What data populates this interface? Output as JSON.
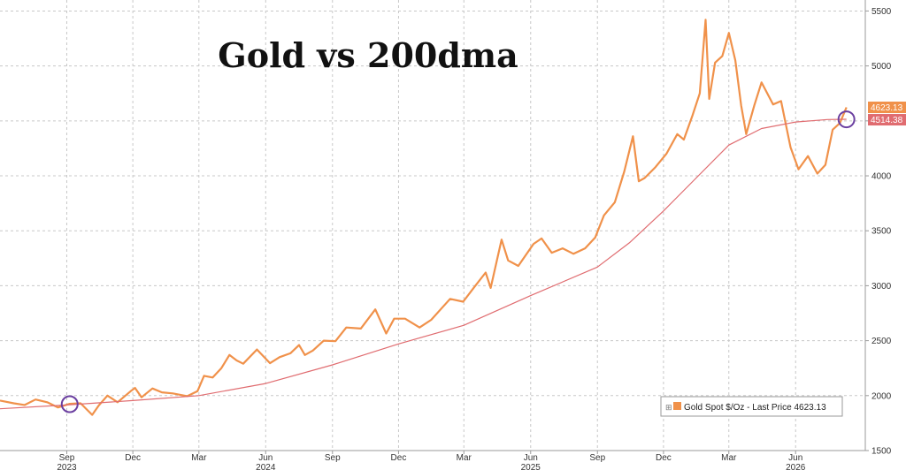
{
  "chart_data": {
    "type": "line",
    "title": "Gold vs 200dma",
    "xlabel": "",
    "ylabel": "",
    "ylim": [
      1500,
      5600
    ],
    "y_ticks": [
      1500,
      2000,
      2500,
      3000,
      3500,
      4000,
      4500,
      5000,
      5500
    ],
    "y_axis_side": "right",
    "x_range": [
      "2023-06-01",
      "2026-09-05"
    ],
    "x_ticks": [
      {
        "date": "2023-09-01",
        "label": "Sep",
        "year": "2023"
      },
      {
        "date": "2023-12-01",
        "label": "Dec",
        "year": ""
      },
      {
        "date": "2024-03-01",
        "label": "Mar",
        "year": ""
      },
      {
        "date": "2024-06-01",
        "label": "Jun",
        "year": "2024"
      },
      {
        "date": "2024-09-01",
        "label": "Sep",
        "year": ""
      },
      {
        "date": "2024-12-01",
        "label": "Dec",
        "year": ""
      },
      {
        "date": "2025-03-01",
        "label": "Mar",
        "year": ""
      },
      {
        "date": "2025-06-01",
        "label": "Jun",
        "year": "2025"
      },
      {
        "date": "2025-09-01",
        "label": "Sep",
        "year": ""
      },
      {
        "date": "2025-12-01",
        "label": "Dec",
        "year": ""
      },
      {
        "date": "2026-03-01",
        "label": "Mar",
        "year": ""
      },
      {
        "date": "2026-06-01",
        "label": "Jun",
        "year": "2026"
      }
    ],
    "grid": true,
    "legend": {
      "placement": "bottom-right",
      "label": "Gold Spot $/Oz - Last Price 4623.13"
    },
    "series": [
      {
        "key": "gold_spot",
        "color": "#f0914a",
        "points": [
          [
            "2023-06-01",
            1955
          ],
          [
            "2023-06-20",
            1930
          ],
          [
            "2023-07-05",
            1915
          ],
          [
            "2023-07-20",
            1965
          ],
          [
            "2023-08-05",
            1940
          ],
          [
            "2023-08-20",
            1892
          ],
          [
            "2023-09-05",
            1925
          ],
          [
            "2023-09-20",
            1930
          ],
          [
            "2023-10-06",
            1825
          ],
          [
            "2023-10-15",
            1910
          ],
          [
            "2023-10-27",
            2000
          ],
          [
            "2023-11-10",
            1940
          ],
          [
            "2023-11-28",
            2040
          ],
          [
            "2023-12-04",
            2070
          ],
          [
            "2023-12-13",
            1985
          ],
          [
            "2023-12-28",
            2065
          ],
          [
            "2024-01-10",
            2030
          ],
          [
            "2024-01-25",
            2020
          ],
          [
            "2024-02-14",
            1995
          ],
          [
            "2024-02-28",
            2040
          ],
          [
            "2024-03-08",
            2180
          ],
          [
            "2024-03-20",
            2165
          ],
          [
            "2024-04-01",
            2250
          ],
          [
            "2024-04-12",
            2370
          ],
          [
            "2024-04-22",
            2320
          ],
          [
            "2024-05-01",
            2290
          ],
          [
            "2024-05-20",
            2420
          ],
          [
            "2024-06-07",
            2295
          ],
          [
            "2024-06-20",
            2350
          ],
          [
            "2024-07-05",
            2385
          ],
          [
            "2024-07-17",
            2460
          ],
          [
            "2024-07-25",
            2370
          ],
          [
            "2024-08-05",
            2410
          ],
          [
            "2024-08-20",
            2500
          ],
          [
            "2024-09-05",
            2495
          ],
          [
            "2024-09-20",
            2620
          ],
          [
            "2024-10-10",
            2610
          ],
          [
            "2024-10-30",
            2785
          ],
          [
            "2024-11-14",
            2565
          ],
          [
            "2024-11-25",
            2700
          ],
          [
            "2024-12-10",
            2700
          ],
          [
            "2024-12-30",
            2620
          ],
          [
            "2025-01-15",
            2690
          ],
          [
            "2025-01-30",
            2800
          ],
          [
            "2025-02-10",
            2880
          ],
          [
            "2025-02-28",
            2855
          ],
          [
            "2025-03-15",
            2985
          ],
          [
            "2025-03-31",
            3120
          ],
          [
            "2025-04-07",
            2980
          ],
          [
            "2025-04-22",
            3420
          ],
          [
            "2025-05-01",
            3230
          ],
          [
            "2025-05-15",
            3180
          ],
          [
            "2025-06-05",
            3380
          ],
          [
            "2025-06-16",
            3430
          ],
          [
            "2025-06-30",
            3300
          ],
          [
            "2025-07-15",
            3340
          ],
          [
            "2025-07-30",
            3290
          ],
          [
            "2025-08-15",
            3340
          ],
          [
            "2025-08-29",
            3440
          ],
          [
            "2025-09-10",
            3640
          ],
          [
            "2025-09-25",
            3760
          ],
          [
            "2025-10-08",
            4040
          ],
          [
            "2025-10-20",
            4360
          ],
          [
            "2025-10-28",
            3950
          ],
          [
            "2025-11-05",
            3980
          ],
          [
            "2025-11-20",
            4080
          ],
          [
            "2025-12-05",
            4200
          ],
          [
            "2025-12-20",
            4380
          ],
          [
            "2025-12-29",
            4330
          ],
          [
            "2026-01-10",
            4550
          ],
          [
            "2026-01-20",
            4750
          ],
          [
            "2026-01-28",
            5420
          ],
          [
            "2026-02-02",
            4700
          ],
          [
            "2026-02-10",
            5030
          ],
          [
            "2026-02-20",
            5090
          ],
          [
            "2026-03-01",
            5300
          ],
          [
            "2026-03-10",
            5050
          ],
          [
            "2026-03-18",
            4640
          ],
          [
            "2026-03-25",
            4380
          ],
          [
            "2026-04-05",
            4640
          ],
          [
            "2026-04-15",
            4850
          ],
          [
            "2026-05-01",
            4650
          ],
          [
            "2026-05-12",
            4680
          ],
          [
            "2026-05-25",
            4260
          ],
          [
            "2026-06-05",
            4060
          ],
          [
            "2026-06-18",
            4180
          ],
          [
            "2026-07-01",
            4020
          ],
          [
            "2026-07-12",
            4100
          ],
          [
            "2026-07-22",
            4420
          ],
          [
            "2026-08-01",
            4480
          ],
          [
            "2026-08-10",
            4623.13
          ]
        ]
      },
      {
        "key": "dma200",
        "color": "#e06c70",
        "points": [
          [
            "2023-06-01",
            1880
          ],
          [
            "2023-09-01",
            1915
          ],
          [
            "2023-12-01",
            1955
          ],
          [
            "2024-03-01",
            2000
          ],
          [
            "2024-06-01",
            2110
          ],
          [
            "2024-09-01",
            2280
          ],
          [
            "2024-12-01",
            2470
          ],
          [
            "2025-03-01",
            2640
          ],
          [
            "2025-06-01",
            2910
          ],
          [
            "2025-09-01",
            3170
          ],
          [
            "2025-10-15",
            3390
          ],
          [
            "2025-12-01",
            3680
          ],
          [
            "2026-01-15",
            3980
          ],
          [
            "2026-03-01",
            4280
          ],
          [
            "2026-04-15",
            4430
          ],
          [
            "2026-06-01",
            4490
          ],
          [
            "2026-07-15",
            4512
          ],
          [
            "2026-08-10",
            4514.38
          ]
        ]
      }
    ],
    "last_labels": [
      {
        "value": 4623.13,
        "text": "4623.13",
        "color": "#f0914a"
      },
      {
        "value": 4514.38,
        "text": "4514.38",
        "color": "#e06c70"
      }
    ],
    "annotations": [
      {
        "type": "circle",
        "date": "2023-09-05",
        "value": 1922,
        "color": "#6b3fa0"
      },
      {
        "type": "circle",
        "date": "2026-08-10",
        "value": 4514,
        "color": "#6b3fa0"
      }
    ]
  }
}
